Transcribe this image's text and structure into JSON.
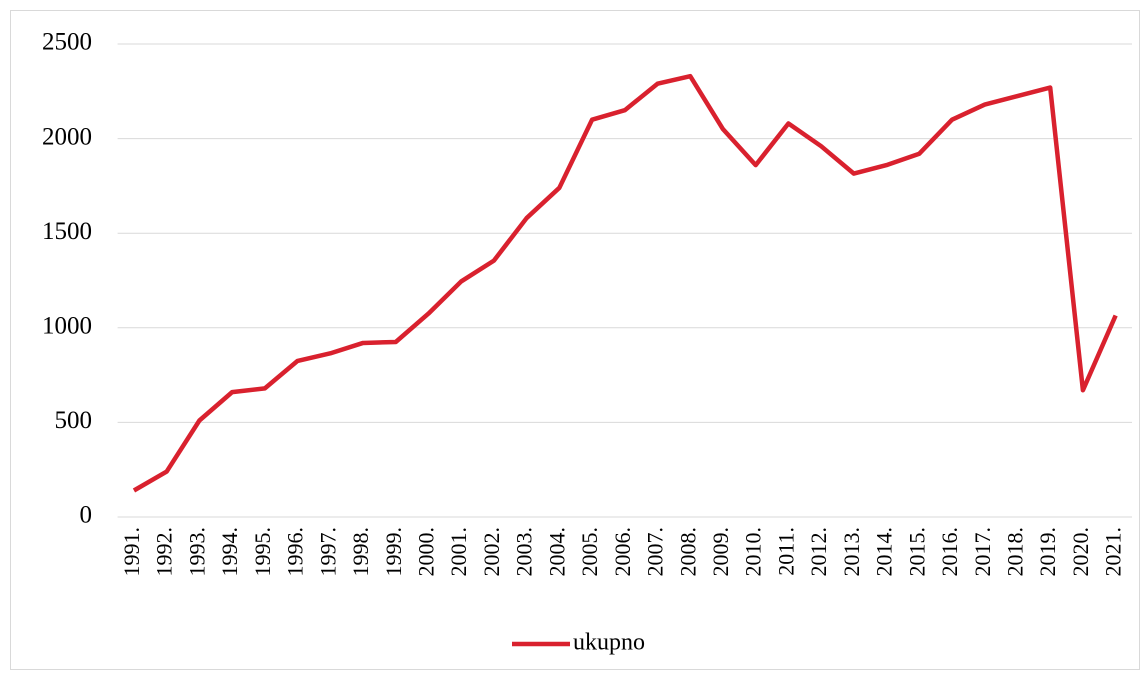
{
  "chart_data": {
    "type": "line",
    "categories": [
      "1991.",
      "1992.",
      "1993.",
      "1994.",
      "1995.",
      "1996.",
      "1997.",
      "1998.",
      "1999.",
      "2000.",
      "2001.",
      "2002.",
      "2003.",
      "2004.",
      "2005.",
      "2006.",
      "2007.",
      "2008.",
      "2009.",
      "2010.",
      "2011.",
      "2012.",
      "2013.",
      "2014.",
      "2015.",
      "2016.",
      "2017.",
      "2018.",
      "2019.",
      "2020.",
      "2021."
    ],
    "series": [
      {
        "name": "ukupno",
        "color": "#d9212e",
        "values": [
          140,
          240,
          510,
          660,
          680,
          825,
          865,
          920,
          925,
          1075,
          1245,
          1355,
          1580,
          1740,
          2100,
          2150,
          2290,
          2330,
          2050,
          1860,
          2080,
          1960,
          1815,
          1860,
          1920,
          2100,
          2180,
          2225,
          2270,
          670,
          1065
        ]
      }
    ],
    "ylim": [
      0,
      2500
    ],
    "yticks": [
      0,
      500,
      1000,
      1500,
      2000,
      2500
    ],
    "grid": true,
    "legend": "bottom"
  }
}
